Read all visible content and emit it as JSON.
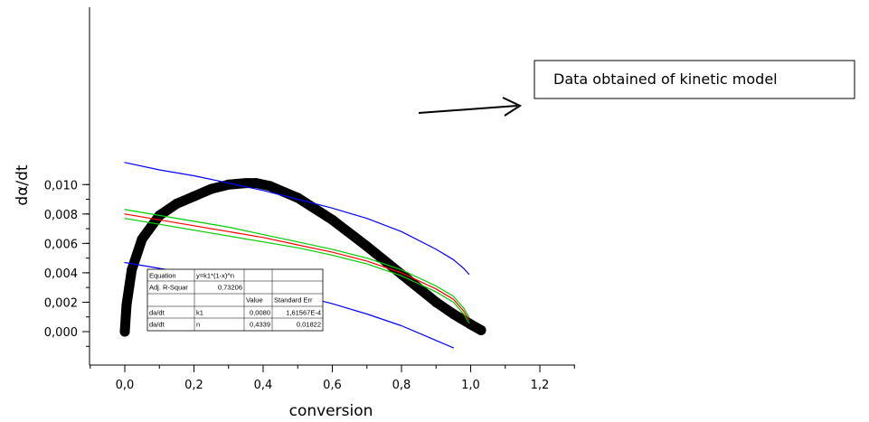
{
  "chart_data": {
    "type": "line",
    "title": "",
    "xlabel": "conversion",
    "ylabel": "dα/dt",
    "xlim": [
      -0.1,
      1.3
    ],
    "ylim": [
      -0.0011,
      0.011
    ],
    "x_ticks": [
      "0,0",
      "0,2",
      "0,4",
      "0,6",
      "0,8",
      "1,0",
      "1,2"
    ],
    "y_ticks": [
      "0,000",
      "0,002",
      "0,004",
      "0,006",
      "0,008",
      "0,010"
    ],
    "y_tick_values": [
      0,
      0.002,
      0.004,
      0.006,
      0.008,
      0.01
    ],
    "x_tick_values": [
      0,
      0.2,
      0.4,
      0.6,
      0.8,
      1.0,
      1.2
    ],
    "grid": false,
    "series": [
      {
        "color": "#000000",
        "style": "thick-markers",
        "x": [
          0.0,
          0.005,
          0.02,
          0.05,
          0.1,
          0.15,
          0.2,
          0.25,
          0.3,
          0.35,
          0.38,
          0.42,
          0.5,
          0.6,
          0.7,
          0.8,
          0.9,
          0.95,
          1.0,
          1.03
        ],
        "y": [
          0.0,
          0.0018,
          0.0042,
          0.0063,
          0.0079,
          0.0087,
          0.0092,
          0.0097,
          0.01,
          0.0101,
          0.0101,
          0.0099,
          0.0091,
          0.0076,
          0.0058,
          0.0039,
          0.002,
          0.0012,
          0.0005,
          0.0001
        ]
      },
      {
        "color": "#ff0000",
        "x": [
          0.0,
          0.1,
          0.2,
          0.3,
          0.4,
          0.5,
          0.6,
          0.7,
          0.8,
          0.9,
          0.95,
          0.98,
          0.995
        ],
        "y": [
          0.008,
          0.0076,
          0.0072,
          0.0068,
          0.0064,
          0.0059,
          0.0054,
          0.0048,
          0.004,
          0.0029,
          0.0022,
          0.0014,
          0.0008
        ]
      },
      {
        "color": "#00cc00",
        "x": [
          0.0,
          0.1,
          0.2,
          0.3,
          0.4,
          0.5,
          0.6,
          0.7,
          0.8,
          0.9,
          0.95,
          0.98,
          0.995
        ],
        "y": [
          0.0083,
          0.0079,
          0.0075,
          0.0071,
          0.0066,
          0.0061,
          0.0056,
          0.005,
          0.0042,
          0.0031,
          0.0024,
          0.0016,
          0.001
        ]
      },
      {
        "color": "#00cc00",
        "x": [
          0.0,
          0.1,
          0.2,
          0.3,
          0.4,
          0.5,
          0.6,
          0.7,
          0.8,
          0.9,
          0.95,
          0.98,
          0.995
        ],
        "y": [
          0.0077,
          0.0073,
          0.0069,
          0.0065,
          0.0061,
          0.0057,
          0.0052,
          0.0046,
          0.0038,
          0.0027,
          0.002,
          0.0012,
          0.0006
        ]
      },
      {
        "color": "#0000ff",
        "x": [
          0.0,
          0.1,
          0.2,
          0.3,
          0.4,
          0.5,
          0.6,
          0.7,
          0.8,
          0.9,
          0.95,
          0.98,
          0.995
        ],
        "y": [
          0.0115,
          0.011,
          0.0106,
          0.0101,
          0.0096,
          0.009,
          0.0084,
          0.0077,
          0.0068,
          0.0056,
          0.0049,
          0.0043,
          0.0039
        ]
      },
      {
        "color": "#0000ff",
        "x": [
          0.0,
          0.1,
          0.2,
          0.3,
          0.4,
          0.5,
          0.6,
          0.7,
          0.8,
          0.85,
          0.9,
          0.95
        ],
        "y": [
          0.0047,
          0.0043,
          0.0039,
          0.0034,
          0.003,
          0.0025,
          0.0019,
          0.0012,
          0.0004,
          -0.0001,
          -0.0006,
          -0.0011
        ]
      }
    ],
    "fit_table": {
      "rows": [
        [
          "Equation",
          "y=k1*(1-x)^n",
          "",
          ""
        ],
        [
          "Adj. R-Squar",
          "0,73206",
          "",
          ""
        ],
        [
          "",
          "",
          "Value",
          "Standard Err"
        ],
        [
          "da/dt",
          "k1",
          "0,0080",
          "1,61567E-4"
        ],
        [
          "da/dt",
          "n",
          "0,4339",
          "0,01822"
        ]
      ]
    },
    "annotation": {
      "text": "Data obtained of kinetic model"
    }
  }
}
